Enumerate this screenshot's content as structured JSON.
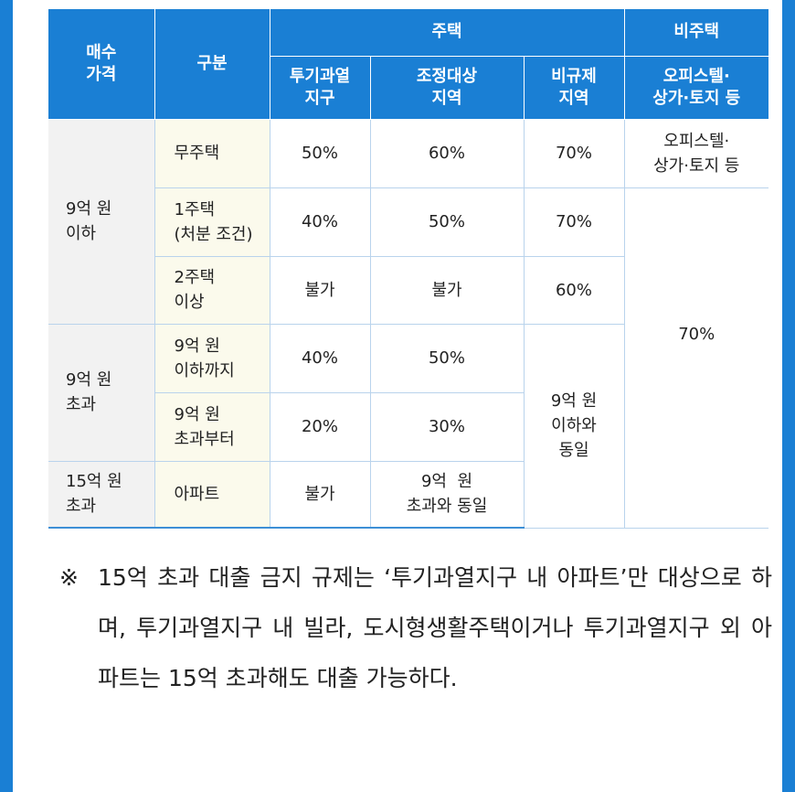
{
  "table": {
    "header": {
      "price": "매수\n가격",
      "category": "구분",
      "housing": "주택",
      "non_housing": "비주택",
      "overheated": "투기과열\n지구",
      "adjustment": "조정대상\n지역",
      "unregulated": "비규제\n지역",
      "office": "오피스텔·\n상가·토지 등"
    },
    "groups": {
      "under_9": "9억 원\n이하",
      "over_9": "9억 원\n초과",
      "over_15": "15억 원\n초과"
    },
    "rows": [
      {
        "category": "무주택",
        "overheated": "50%",
        "adjustment": "60%",
        "unregulated": "70%",
        "office": "오피스텔·\n상가·토지 등"
      },
      {
        "category": "1주택\n(처분 조건)",
        "overheated": "40%",
        "adjustment": "50%",
        "unregulated": "70%"
      },
      {
        "category": "2주택\n이상",
        "overheated": "불가",
        "adjustment": "불가",
        "unregulated": "60%"
      },
      {
        "category": "9억 원\n이하까지",
        "overheated": "40%",
        "adjustment": "50%"
      },
      {
        "category": "9억 원\n초과부터",
        "overheated": "20%",
        "adjustment": "30%"
      },
      {
        "category": "아파트",
        "overheated": "불가",
        "adjustment": "9억  원\n초과와 동일"
      }
    ],
    "merged": {
      "office_rate": "70%",
      "unregulated_over9": "9억 원\n이하와\n동일"
    }
  },
  "note": {
    "mark": "※",
    "text": "15억 초과 대출 금지 규제는 ‘투기과열지구 내 아파트’만 대상으로 하며, 투기과열지구 내 빌라, 도시형생활주택이거나 투기과열지구 외 아파트는 15억 초과해도 대출 가능하다."
  }
}
